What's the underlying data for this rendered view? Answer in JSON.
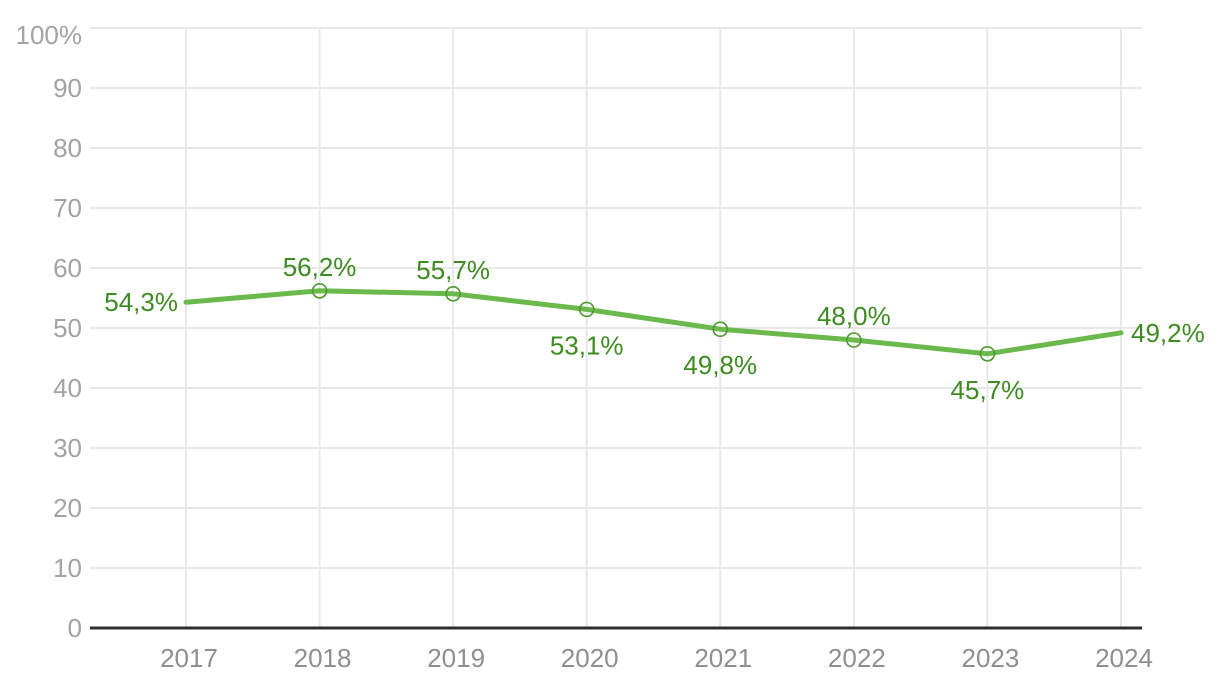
{
  "chart_data": {
    "type": "line",
    "title": "",
    "xlabel": "",
    "ylabel": "",
    "legend": "none",
    "grid": "on",
    "ylim": [
      0,
      100
    ],
    "categories": [
      "2017",
      "2018",
      "2019",
      "2020",
      "2021",
      "2022",
      "2023",
      "2024"
    ],
    "series": [
      {
        "name": "percentage-trend",
        "values": [
          54.3,
          56.2,
          55.7,
          53.1,
          49.8,
          48.0,
          45.7,
          49.2
        ]
      }
    ],
    "point_labels": [
      "54,3%",
      "56,2%",
      "55,7%",
      "53,1%",
      "49,8%",
      "48,0%",
      "45,7%",
      "49,2%"
    ],
    "label_positions": [
      "left",
      "above",
      "above",
      "below",
      "below",
      "above",
      "below",
      "right"
    ],
    "point_markers": [
      false,
      true,
      true,
      true,
      true,
      true,
      true,
      false
    ],
    "y_ticks": [
      {
        "value": 0,
        "label": "0"
      },
      {
        "value": 10,
        "label": "10"
      },
      {
        "value": 20,
        "label": "20"
      },
      {
        "value": 30,
        "label": "30"
      },
      {
        "value": 40,
        "label": "40"
      },
      {
        "value": 50,
        "label": "50"
      },
      {
        "value": 60,
        "label": "60"
      },
      {
        "value": 70,
        "label": "70"
      },
      {
        "value": 80,
        "label": "80"
      },
      {
        "value": 90,
        "label": "90"
      },
      {
        "value": 100,
        "label": "100%"
      }
    ],
    "colors": {
      "line": "#6bb84c",
      "marker_stroke": "#4e9a2e",
      "marker_fill": "none",
      "value_label": "#3e8c21",
      "y_tick_label": "#a3a3a3",
      "x_tick_label": "#8f8f8f",
      "gridline": "#e8e8e8",
      "axis_line": "#2f2f2f",
      "background": "#ffffff"
    }
  }
}
